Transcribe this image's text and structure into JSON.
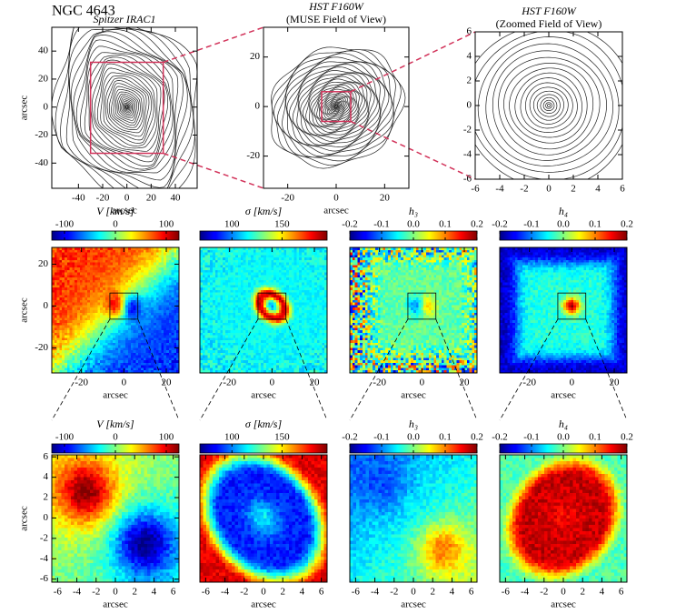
{
  "figure_title": "NGC 4643",
  "chart_data": [
    {
      "type": "contour",
      "title": "Spitzer IRAC1",
      "xlabel": "arcsec",
      "ylabel": "arcsec",
      "xlim": [
        -62,
        58
      ],
      "ylim": [
        -58,
        57
      ],
      "xticks": [
        -40,
        -20,
        0,
        20,
        40
      ],
      "yticks": [
        -40,
        -20,
        0,
        20,
        40
      ]
    },
    {
      "type": "contour",
      "title": "HST F160W",
      "subtitle": "(MUSE Field of View)",
      "xlabel": "arcsec",
      "xlim": [
        -30,
        30
      ],
      "ylim": [
        -33,
        32
      ],
      "xticks": [
        -20,
        0,
        20
      ],
      "yticks": [
        -20,
        0,
        20
      ]
    },
    {
      "type": "contour",
      "title": "HST F160W",
      "subtitle": "(Zoomed Field of View)",
      "xlim": [
        -6,
        6
      ],
      "ylim": [
        -6,
        6
      ],
      "xticks": [
        -6,
        -4,
        -2,
        0,
        2,
        4,
        6
      ],
      "yticks": [
        -6,
        -4,
        -2,
        0,
        2,
        4,
        6
      ]
    },
    {
      "type": "map",
      "colorbar_label": "V [km/s]",
      "clim": [
        -125,
        125
      ],
      "cticks": [
        -100,
        0,
        100
      ],
      "xlabel": "arcsec",
      "ylabel": "arcsec",
      "xlim": [
        -34,
        26
      ],
      "ylim": [
        -32,
        28
      ],
      "xticks": [
        -20,
        0,
        20
      ],
      "yticks": [
        -20,
        0,
        20
      ]
    },
    {
      "type": "map",
      "colorbar_label": "σ [km/s]",
      "clim": [
        68,
        195
      ],
      "cticks": [
        100,
        150
      ],
      "xlabel": "arcsec",
      "xlim": [
        -34,
        26
      ],
      "ylim": [
        -32,
        28
      ],
      "xticks": [
        -20,
        0,
        20
      ]
    },
    {
      "type": "map",
      "colorbar_label": "h₃",
      "clim": [
        -0.2,
        0.2
      ],
      "cticks": [
        -0.2,
        -0.1,
        {
          "value": 0,
          "label": "0.0"
        },
        0.1,
        0.2
      ],
      "xlabel": "arcsec",
      "xlim": [
        -34,
        26
      ],
      "ylim": [
        -32,
        28
      ],
      "xticks": [
        -20,
        0,
        20
      ]
    },
    {
      "type": "map",
      "colorbar_label": "h₄",
      "clim": [
        -0.2,
        0.2
      ],
      "cticks": [
        -0.2,
        -0.1,
        {
          "value": 0,
          "label": "0.0"
        },
        0.1,
        0.2
      ],
      "xlabel": "arcsec",
      "xlim": [
        -34,
        26
      ],
      "ylim": [
        -32,
        28
      ],
      "xticks": [
        -20,
        0,
        20
      ]
    },
    {
      "type": "map",
      "colorbar_label": "V [km/s]",
      "clim": [
        -125,
        125
      ],
      "cticks": [
        -100,
        0,
        100
      ],
      "xlabel": "arcsec",
      "ylabel": "arcsec",
      "xlim": [
        -6.6,
        6.6
      ],
      "ylim": [
        -6.3,
        6.2
      ],
      "xticks": [
        -6,
        -4,
        -2,
        0,
        2,
        4,
        6
      ],
      "yticks": [
        -6,
        -4,
        -2,
        0,
        2,
        4,
        6
      ]
    },
    {
      "type": "map",
      "colorbar_label": "σ [km/s]",
      "clim": [
        68,
        195
      ],
      "cticks": [
        100,
        150
      ],
      "xlabel": "arcsec",
      "xlim": [
        -6.6,
        6.6
      ],
      "ylim": [
        -6.3,
        6.2
      ],
      "xticks": [
        -6,
        -4,
        -2,
        0,
        2,
        4,
        6
      ]
    },
    {
      "type": "map",
      "colorbar_label": "h₃",
      "clim": [
        -0.2,
        0.2
      ],
      "cticks": [
        -0.2,
        -0.1,
        {
          "value": 0,
          "label": "0.0"
        },
        0.1,
        0.2
      ],
      "xlabel": "arcsec",
      "xlim": [
        -6.6,
        6.6
      ],
      "ylim": [
        -6.3,
        6.2
      ],
      "xticks": [
        -6,
        -4,
        -2,
        0,
        2,
        4,
        6
      ]
    },
    {
      "type": "map",
      "colorbar_label": "h₄",
      "clim": [
        -0.2,
        0.2
      ],
      "cticks": [
        -0.2,
        -0.1,
        {
          "value": 0,
          "label": "0.0"
        },
        0.1,
        0.2
      ],
      "xlabel": "arcsec",
      "xlim": [
        -6.6,
        6.6
      ],
      "ylim": [
        -6.3,
        6.2
      ],
      "xticks": [
        -6,
        -4,
        -2,
        0,
        2,
        4,
        6
      ]
    }
  ]
}
